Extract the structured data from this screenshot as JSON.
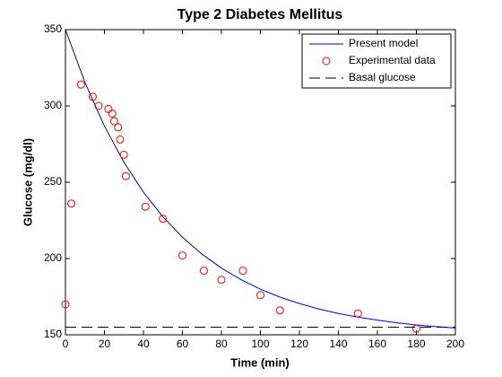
{
  "chart_data": {
    "type": "line",
    "title": "Type 2 Diabetes Mellitus",
    "xlabel": "Time (min)",
    "ylabel": "Glucose (mg/dl)",
    "xlim": [
      0,
      200
    ],
    "ylim": [
      150,
      350
    ],
    "xticks": [
      0,
      20,
      40,
      60,
      80,
      100,
      120,
      140,
      160,
      180,
      200
    ],
    "yticks": [
      150,
      200,
      250,
      300,
      350
    ],
    "grid": false,
    "legend": "top-right",
    "series": [
      {
        "name": "Present model",
        "color": "#0000cc",
        "style": "line",
        "x": [
          0,
          10,
          20,
          30,
          40,
          50,
          60,
          70,
          80,
          90,
          100,
          110,
          120,
          130,
          140,
          150,
          160,
          170,
          180,
          190,
          200
        ],
        "values": [
          350,
          315.4,
          286.8,
          263.1,
          243.5,
          227.3,
          214,
          202.9,
          193.7,
          186.2,
          179.9,
          174.7,
          170.5,
          166.9,
          164,
          161.6,
          159.6,
          157.9,
          156.5,
          155.4,
          154.5
        ]
      },
      {
        "name": "Experimental data",
        "color": "#ff0000",
        "style": "marker",
        "x": [
          0,
          3,
          8,
          14,
          17,
          22,
          24,
          25,
          27,
          28,
          30,
          31,
          41,
          50,
          60,
          71,
          80,
          91,
          100,
          110,
          150,
          180
        ],
        "values": [
          170,
          236,
          314,
          306,
          300,
          298,
          295,
          290,
          286,
          278,
          268,
          254,
          234,
          226,
          202,
          192,
          186,
          192,
          176,
          166,
          164,
          154
        ]
      },
      {
        "name": "Basal glucose",
        "color": "#000000",
        "style": "dashed",
        "x": [
          0,
          200
        ],
        "values": [
          155,
          155
        ]
      }
    ]
  }
}
